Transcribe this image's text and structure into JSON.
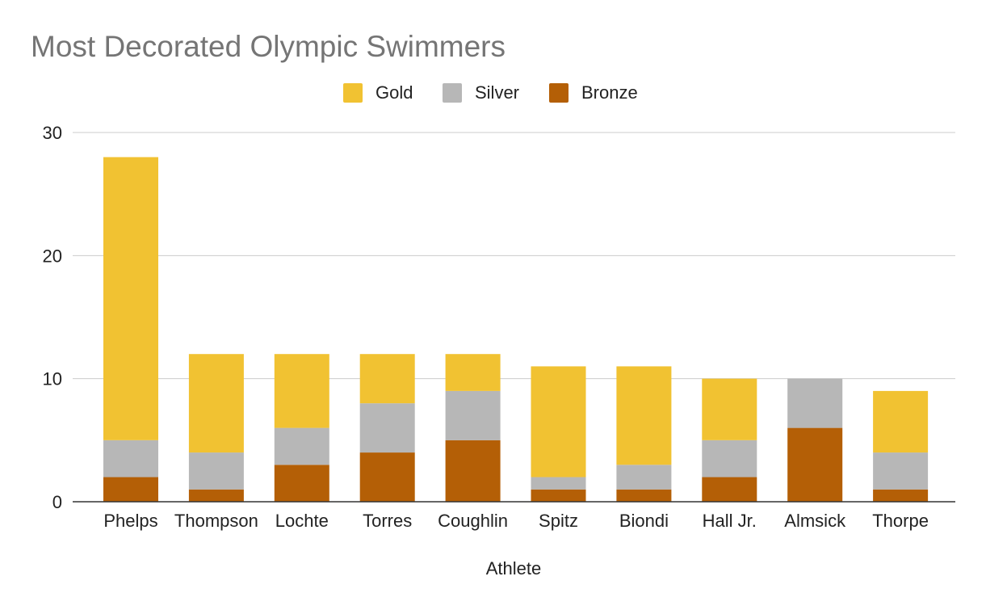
{
  "chart_data": {
    "type": "bar",
    "stacked": true,
    "title": "Most Decorated Olympic Swimmers",
    "xlabel": "Athlete",
    "ylabel": "",
    "ylim": [
      0,
      30
    ],
    "yticks": [
      "0",
      "10",
      "20",
      "30"
    ],
    "grid": true,
    "legend_position": "top",
    "categories": [
      "Phelps",
      "Thompson",
      "Lochte",
      "Torres",
      "Coughlin",
      "Spitz",
      "Biondi",
      "Hall Jr.",
      "Almsick",
      "Thorpe"
    ],
    "series": [
      {
        "name": "Bronze",
        "color": "#b45f06",
        "values": [
          2,
          1,
          3,
          4,
          5,
          1,
          1,
          2,
          6,
          1
        ]
      },
      {
        "name": "Silver",
        "color": "#b7b7b7",
        "values": [
          3,
          3,
          3,
          4,
          4,
          1,
          2,
          3,
          4,
          3
        ]
      },
      {
        "name": "Gold",
        "color": "#f1c232",
        "values": [
          23,
          8,
          6,
          4,
          3,
          9,
          8,
          5,
          0,
          5
        ]
      }
    ],
    "legend_order": [
      "Gold",
      "Silver",
      "Bronze"
    ]
  }
}
